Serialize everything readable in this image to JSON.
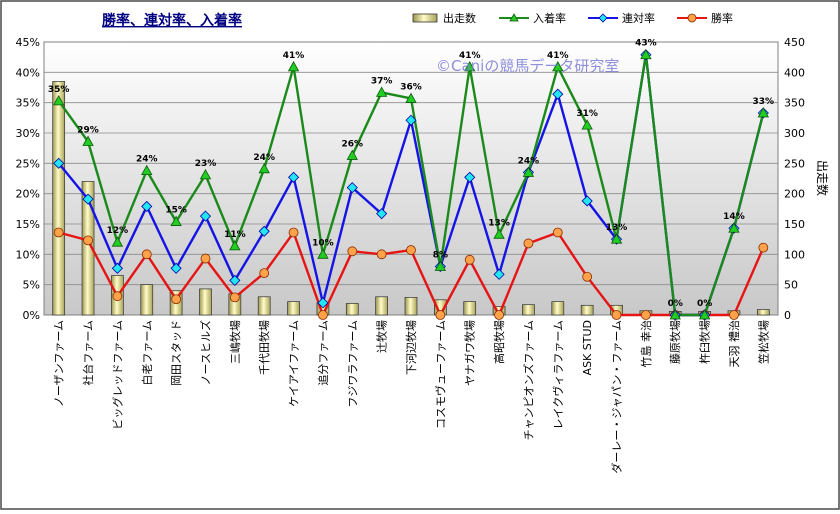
{
  "chart_data": {
    "type": "combo-bar-line",
    "title": "勝率、連対率、入着率",
    "watermark": "©Caniの競馬データ研究室",
    "y2label": "出走数",
    "ylim": [
      0,
      45
    ],
    "y2lim": [
      0,
      450
    ],
    "yticks": [
      "0%",
      "5%",
      "10%",
      "15%",
      "20%",
      "25%",
      "30%",
      "35%",
      "40%",
      "45%"
    ],
    "y2ticks": [
      "0",
      "50",
      "100",
      "150",
      "200",
      "250",
      "300",
      "350",
      "400",
      "450"
    ],
    "legend_position": "top",
    "grid": true,
    "categories": [
      "ノーザンファーム",
      "社台ファーム",
      "ビッグレッドファーム",
      "白老ファーム",
      "岡田スタッド",
      "ノースヒルズ",
      "三嶋牧場",
      "千代田牧場",
      "ケイアイファーム",
      "追分ファーム",
      "フジワラファーム",
      "辻牧場",
      "下河辺牧場",
      "コスモヴューファーム",
      "ヤナガワ牧場",
      "高昭牧場",
      "チャンピオンズファーム",
      "レイクヴィラファーム",
      "ASK STUD",
      "ダーレー・ジャパン・ファーム",
      "竹島 幸治",
      "藤原牧場",
      "杵臼牧場",
      "天羽 禮治",
      "笠松牧場"
    ],
    "series": [
      {
        "name": "出走数",
        "type": "bar",
        "axis": "y2",
        "color": "#f0e68c",
        "values": [
          385,
          220,
          65,
          50,
          40,
          43,
          35,
          30,
          22,
          20,
          19,
          30,
          29,
          25,
          22,
          14,
          17,
          22,
          16,
          16,
          7,
          6,
          6,
          7,
          9
        ]
      },
      {
        "name": "入着率",
        "type": "line",
        "axis": "y",
        "color": "#1a8a1a",
        "marker": "triangle",
        "values": [
          35.3,
          28.6,
          12.0,
          23.8,
          15.4,
          23.1,
          11.4,
          24.1,
          40.9,
          10.0,
          26.3,
          36.7,
          35.7,
          8.0,
          40.9,
          13.3,
          23.5,
          40.9,
          31.3,
          12.5,
          42.9,
          0.0,
          0.0,
          14.3,
          33.3
        ],
        "labels": [
          "35%",
          "29%",
          "12%",
          "24%",
          "15%",
          "23%",
          "11%",
          "24%",
          "41%",
          "10%",
          "26%",
          "37%",
          "36%",
          "8%",
          "41%",
          "13%",
          "24%",
          "41%",
          "31%",
          "13%",
          "43%",
          "0%",
          "0%",
          "14%",
          "33%"
        ]
      },
      {
        "name": "連対率",
        "type": "line",
        "axis": "y",
        "color": "#1414e6",
        "marker": "diamond",
        "values": [
          25.0,
          19.1,
          7.7,
          17.9,
          7.7,
          16.3,
          5.7,
          13.8,
          22.7,
          2.0,
          21.0,
          16.7,
          32.1,
          8.0,
          22.7,
          6.7,
          23.5,
          36.4,
          18.8,
          12.5,
          42.9,
          0.0,
          0.0,
          14.3,
          33.3
        ]
      },
      {
        "name": "勝率",
        "type": "line",
        "axis": "y",
        "color": "#e61414",
        "marker": "circle",
        "values": [
          13.6,
          12.3,
          3.1,
          10.0,
          2.6,
          9.3,
          2.9,
          6.9,
          13.6,
          0.0,
          10.5,
          10.0,
          10.7,
          0.0,
          9.1,
          0.0,
          11.8,
          13.6,
          6.3,
          0.0,
          0.0,
          0.0,
          0.0,
          0.0,
          11.1
        ]
      }
    ]
  }
}
